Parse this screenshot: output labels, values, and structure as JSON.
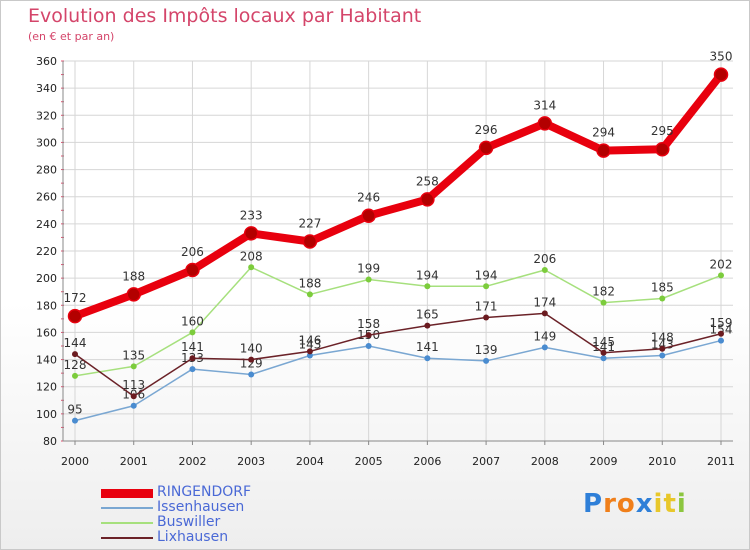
{
  "title": "Evolution des Impôts locaux par Habitant",
  "subtitle": "(en € et par an)",
  "logo": {
    "text": "Proxiti",
    "letters": [
      "P",
      "r",
      "o",
      "x",
      "i",
      "t",
      "i"
    ],
    "colors": [
      "#2e7fd8",
      "#f07f1a",
      "#f07f1a",
      "#2e7fd8",
      "#e8c72a",
      "#e8c72a",
      "#8cc63f"
    ]
  },
  "chart_data": {
    "type": "line",
    "title": "Evolution des Impôts locaux par Habitant",
    "subtitle": "(en € et par an)",
    "xlabel": "",
    "ylabel": "",
    "x": [
      "2000",
      "2001",
      "2002",
      "2003",
      "2004",
      "2005",
      "2006",
      "2007",
      "2008",
      "2009",
      "2010",
      "2011"
    ],
    "ylim": [
      80,
      360
    ],
    "yticks": [
      80,
      100,
      120,
      140,
      160,
      180,
      200,
      220,
      240,
      260,
      280,
      300,
      320,
      340,
      360
    ],
    "grid": true,
    "legend_position": "bottom-left",
    "series": [
      {
        "name": "RINGENDORF",
        "color": "#e8000e",
        "marker": "#b30000",
        "emphasis": true,
        "values": [
          172,
          188,
          206,
          233,
          227,
          246,
          258,
          296,
          314,
          294,
          295,
          350
        ]
      },
      {
        "name": "Issenhausen",
        "color": "#7aa7d2",
        "marker": "#4a8cd0",
        "values": [
          95,
          106,
          133,
          129,
          143,
          150,
          141,
          139,
          149,
          141,
          143,
          154
        ]
      },
      {
        "name": "Buswiller",
        "color": "#a6e07d",
        "marker": "#7ccc3c",
        "values": [
          128,
          135,
          160,
          208,
          188,
          199,
          194,
          194,
          206,
          182,
          185,
          202
        ]
      },
      {
        "name": "Lixhausen",
        "color": "#6b2228",
        "marker": "#6b1b20",
        "values": [
          144,
          113,
          141,
          140,
          146,
          158,
          165,
          171,
          174,
          145,
          148,
          159
        ]
      }
    ]
  }
}
